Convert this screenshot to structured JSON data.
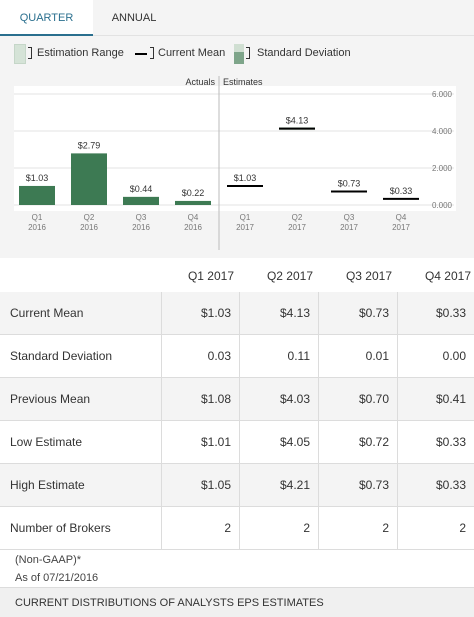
{
  "tabs": [
    {
      "label": "QUARTER",
      "active": true
    },
    {
      "label": "ANNUAL",
      "active": false
    }
  ],
  "legend": {
    "range_label": "Estimation Range",
    "mean_label": "Current Mean",
    "sd_label": "Standard Deviation"
  },
  "chart_data": {
    "type": "bar",
    "section_labels": {
      "actuals": "Actuals",
      "estimates": "Estimates"
    },
    "categories": [
      {
        "quarter": "Q1",
        "year": "2016"
      },
      {
        "quarter": "Q2",
        "year": "2016"
      },
      {
        "quarter": "Q3",
        "year": "2016"
      },
      {
        "quarter": "Q4",
        "year": "2016"
      },
      {
        "quarter": "Q1",
        "year": "2017"
      },
      {
        "quarter": "Q2",
        "year": "2017"
      },
      {
        "quarter": "Q3",
        "year": "2017"
      },
      {
        "quarter": "Q4",
        "year": "2017"
      }
    ],
    "actuals": [
      {
        "value": 1.03,
        "label": "$1.03"
      },
      {
        "value": 2.79,
        "label": "$2.79"
      },
      {
        "value": 0.44,
        "label": "$0.44"
      },
      {
        "value": 0.22,
        "label": "$0.22"
      }
    ],
    "estimates": [
      {
        "mean": 1.03,
        "label": "$1.03",
        "low": 1.01,
        "high": 1.05
      },
      {
        "mean": 4.13,
        "label": "$4.13",
        "low": 4.05,
        "high": 4.21
      },
      {
        "mean": 0.73,
        "label": "$0.73",
        "low": 0.72,
        "high": 0.73
      },
      {
        "mean": 0.33,
        "label": "$0.33",
        "low": 0.33,
        "high": 0.33
      }
    ],
    "ylim": [
      0,
      6
    ],
    "yticks": [
      {
        "value": 0,
        "label": "0.000"
      },
      {
        "value": 2,
        "label": "2.000"
      },
      {
        "value": 4,
        "label": "4.000"
      },
      {
        "value": 6,
        "label": "6.000"
      }
    ],
    "colors": {
      "bar": "#3d7a53",
      "mean": "#000000",
      "grid": "#e3e3e3"
    }
  },
  "table": {
    "columns": [
      "Q1 2017",
      "Q2 2017",
      "Q3 2017",
      "Q4 2017"
    ],
    "rows": [
      {
        "label": "Current Mean",
        "values": [
          "$1.03",
          "$4.13",
          "$0.73",
          "$0.33"
        ]
      },
      {
        "label": "Standard Deviation",
        "values": [
          "0.03",
          "0.11",
          "0.01",
          "0.00"
        ]
      },
      {
        "label": "Previous Mean",
        "values": [
          "$1.08",
          "$4.03",
          "$0.70",
          "$0.41"
        ]
      },
      {
        "label": "Low Estimate",
        "values": [
          "$1.01",
          "$4.05",
          "$0.72",
          "$0.33"
        ]
      },
      {
        "label": "High Estimate",
        "values": [
          "$1.05",
          "$4.21",
          "$0.73",
          "$0.33"
        ]
      },
      {
        "label": "Number of Brokers",
        "values": [
          "2",
          "2",
          "2",
          "2"
        ]
      }
    ]
  },
  "footnotes": {
    "gaap": "(Non-GAAP)*",
    "as_of": "As of 07/21/2016"
  },
  "footer": {
    "title": "CURRENT DISTRIBUTIONS OF ANALYSTS EPS ESTIMATES"
  }
}
